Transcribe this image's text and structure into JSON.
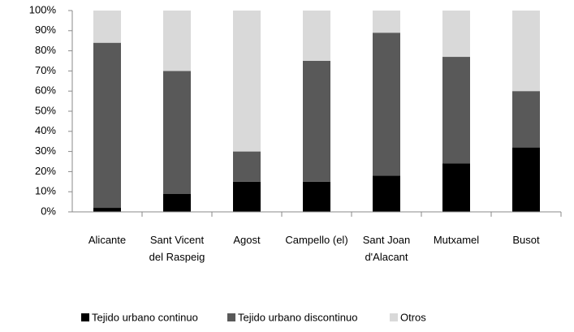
{
  "chart_data": {
    "type": "bar",
    "stacked": true,
    "categories": [
      "Alicante",
      "Sant Vicent del Raspeig",
      "Agost",
      "Campello (el)",
      "Sant Joan d'Alacant",
      "Mutxamel",
      "Busot"
    ],
    "series": [
      {
        "name": "Tejido urbano continuo",
        "color": "#000000",
        "values": [
          2,
          9,
          15,
          15,
          18,
          24,
          32
        ]
      },
      {
        "name": "Tejido urbano discontinuo",
        "color": "#595959",
        "values": [
          82,
          61,
          15,
          60,
          71,
          53,
          28
        ]
      },
      {
        "name": "Otros",
        "color": "#d9d9d9",
        "values": [
          16,
          30,
          70,
          25,
          11,
          23,
          40
        ]
      }
    ],
    "ylim": [
      0,
      100
    ],
    "yticks": [
      {
        "value": 0,
        "label": "0%"
      },
      {
        "value": 10,
        "label": "10%"
      },
      {
        "value": 20,
        "label": "20%"
      },
      {
        "value": 30,
        "label": "30%"
      },
      {
        "value": 40,
        "label": "40%"
      },
      {
        "value": 50,
        "label": "50%"
      },
      {
        "value": 60,
        "label": "60%"
      },
      {
        "value": 70,
        "label": "70%"
      },
      {
        "value": 80,
        "label": "80%"
      },
      {
        "value": 90,
        "label": "90%"
      },
      {
        "value": 100,
        "label": "100%"
      }
    ],
    "legend": "bottom"
  }
}
